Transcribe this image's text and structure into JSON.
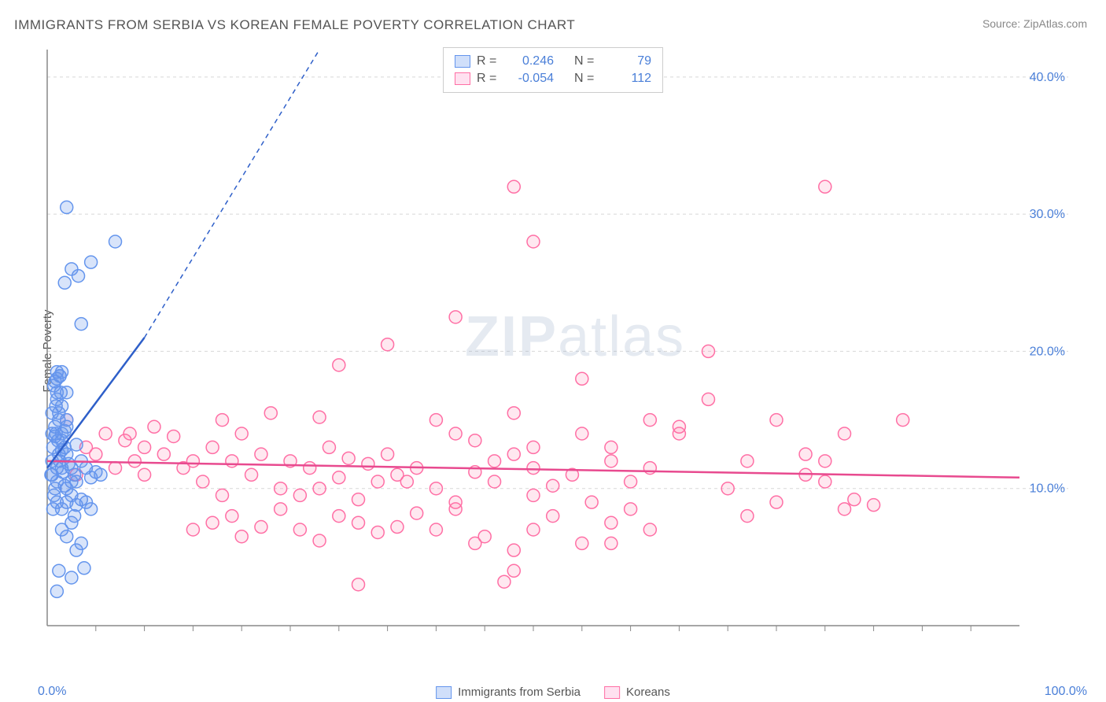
{
  "title": "IMMIGRANTS FROM SERBIA VS KOREAN FEMALE POVERTY CORRELATION CHART",
  "source": "Source: ZipAtlas.com",
  "ylabel": "Female Poverty",
  "watermark_zip": "ZIP",
  "watermark_atlas": "atlas",
  "chart": {
    "type": "scatter",
    "background_color": "#ffffff",
    "grid_color": "#d8d8d8",
    "axis_color": "#888888",
    "xlim": [
      0,
      100
    ],
    "ylim": [
      0,
      42
    ],
    "y_gridlines": [
      10,
      20,
      30,
      40
    ],
    "y_tick_labels": [
      "10.0%",
      "20.0%",
      "30.0%",
      "40.0%"
    ],
    "x_axis_min_label": "0.0%",
    "x_axis_max_label": "100.0%",
    "x_tick_positions": [
      5,
      10,
      15,
      20,
      25,
      30,
      35,
      40,
      45,
      50,
      55,
      60,
      65,
      70,
      75,
      80,
      85,
      90,
      95
    ],
    "marker_radius": 8,
    "marker_stroke_width": 1.5,
    "series": {
      "serbia": {
        "label": "Immigrants from Serbia",
        "color_fill": "rgba(100,149,237,0.25)",
        "color_stroke": "#6495ed",
        "R": "0.246",
        "N": "79",
        "trend": {
          "x1": 0,
          "y1": 11.5,
          "x2": 10,
          "y2": 21,
          "dash_x2": 28,
          "dash_y2": 42,
          "stroke": "#2e5fc9",
          "stroke_width": 2.5,
          "dash": "6,5"
        },
        "points": [
          [
            0.5,
            11
          ],
          [
            0.5,
            12
          ],
          [
            0.8,
            10
          ],
          [
            0.6,
            13
          ],
          [
            0.9,
            14
          ],
          [
            1.0,
            11.5
          ],
          [
            1.2,
            12.5
          ],
          [
            0.7,
            9.5
          ],
          [
            1.1,
            13.5
          ],
          [
            0.4,
            11
          ],
          [
            1.3,
            12
          ],
          [
            0.8,
            14.5
          ],
          [
            1.0,
            10.5
          ],
          [
            1.5,
            12.8
          ],
          [
            0.6,
            8.5
          ],
          [
            1.2,
            15
          ],
          [
            0.9,
            16
          ],
          [
            1.4,
            17
          ],
          [
            0.7,
            17.5
          ],
          [
            1.0,
            18
          ],
          [
            1.3,
            18.2
          ],
          [
            0.5,
            15.5
          ],
          [
            1.6,
            11.2
          ],
          [
            1.8,
            13
          ],
          [
            2.0,
            12.5
          ],
          [
            2.2,
            11.8
          ],
          [
            2.5,
            10.5
          ],
          [
            2.8,
            11
          ],
          [
            3.0,
            13.2
          ],
          [
            3.5,
            12
          ],
          [
            4.0,
            11.5
          ],
          [
            4.5,
            10.8
          ],
          [
            5.0,
            11.2
          ],
          [
            5.5,
            11
          ],
          [
            2.5,
            26
          ],
          [
            3.2,
            25.5
          ],
          [
            4.5,
            26.5
          ],
          [
            1.8,
            25
          ],
          [
            2.0,
            30.5
          ],
          [
            3.5,
            22
          ],
          [
            7.0,
            28
          ],
          [
            1.5,
            7
          ],
          [
            2.0,
            6.5
          ],
          [
            2.5,
            7.5
          ],
          [
            3.0,
            5.5
          ],
          [
            3.5,
            6
          ],
          [
            2.8,
            8
          ],
          [
            1.2,
            4
          ],
          [
            2.5,
            3.5
          ],
          [
            3.8,
            4.2
          ],
          [
            1.0,
            2.5
          ],
          [
            2.0,
            9
          ],
          [
            2.5,
            9.5
          ],
          [
            3.0,
            8.8
          ],
          [
            1.8,
            10.2
          ],
          [
            3.5,
            9.2
          ],
          [
            4.0,
            9
          ],
          [
            4.5,
            8.5
          ],
          [
            1.5,
            14
          ],
          [
            2.0,
            14.5
          ],
          [
            1.0,
            16.5
          ],
          [
            1.5,
            16
          ],
          [
            2.0,
            17
          ],
          [
            0.5,
            14
          ],
          [
            1.0,
            18.5
          ],
          [
            1.3,
            18.2
          ],
          [
            0.8,
            17.8
          ],
          [
            1.5,
            18.5
          ],
          [
            1.0,
            17
          ],
          [
            1.2,
            15.5
          ],
          [
            0.8,
            13.8
          ],
          [
            1.5,
            13.5
          ],
          [
            1.8,
            14.2
          ],
          [
            2.0,
            15
          ],
          [
            1.0,
            9
          ],
          [
            1.5,
            8.5
          ],
          [
            2.0,
            10
          ],
          [
            2.5,
            11.5
          ],
          [
            3.0,
            10.5
          ],
          [
            1.5,
            11.5
          ]
        ]
      },
      "koreans": {
        "label": "Koreans",
        "color_fill": "rgba(255,130,170,0.18)",
        "color_stroke": "#ff6fa5",
        "R": "-0.054",
        "N": "112",
        "trend": {
          "x1": 0,
          "y1": 12,
          "x2": 100,
          "y2": 10.8,
          "stroke": "#e84a8f",
          "stroke_width": 2.5
        },
        "points": [
          [
            2,
            15
          ],
          [
            3,
            11
          ],
          [
            4,
            13
          ],
          [
            5,
            12.5
          ],
          [
            6,
            14
          ],
          [
            7,
            11.5
          ],
          [
            8,
            13.5
          ],
          [
            8.5,
            14
          ],
          [
            9,
            12
          ],
          [
            10,
            13
          ],
          [
            10,
            11
          ],
          [
            11,
            14.5
          ],
          [
            12,
            12.5
          ],
          [
            13,
            13.8
          ],
          [
            14,
            11.5
          ],
          [
            15,
            12
          ],
          [
            16,
            10.5
          ],
          [
            17,
            13
          ],
          [
            18,
            9.5
          ],
          [
            18,
            15
          ],
          [
            19,
            12
          ],
          [
            20,
            14
          ],
          [
            21,
            11
          ],
          [
            22,
            12.5
          ],
          [
            23,
            15.5
          ],
          [
            24,
            10
          ],
          [
            15,
            7
          ],
          [
            17,
            7.5
          ],
          [
            19,
            8
          ],
          [
            20,
            6.5
          ],
          [
            22,
            7.2
          ],
          [
            24,
            8.5
          ],
          [
            26,
            7
          ],
          [
            28,
            6.2
          ],
          [
            30,
            8
          ],
          [
            32,
            7.5
          ],
          [
            34,
            6.8
          ],
          [
            36,
            7.2
          ],
          [
            38,
            8.2
          ],
          [
            40,
            7
          ],
          [
            42,
            8.5
          ],
          [
            44,
            6
          ],
          [
            25,
            12
          ],
          [
            27,
            11.5
          ],
          [
            29,
            13
          ],
          [
            31,
            12.2
          ],
          [
            33,
            11.8
          ],
          [
            35,
            12.5
          ],
          [
            37,
            10.5
          ],
          [
            26,
            9.5
          ],
          [
            28,
            10
          ],
          [
            30,
            10.8
          ],
          [
            32,
            9.2
          ],
          [
            34,
            10.5
          ],
          [
            36,
            11
          ],
          [
            40,
            15
          ],
          [
            42,
            14
          ],
          [
            44,
            13.5
          ],
          [
            46,
            12
          ],
          [
            48,
            15.5
          ],
          [
            50,
            11.5
          ],
          [
            38,
            11.5
          ],
          [
            40,
            10
          ],
          [
            42,
            9
          ],
          [
            44,
            11.2
          ],
          [
            46,
            10.5
          ],
          [
            48,
            12.5
          ],
          [
            50,
            9.5
          ],
          [
            52,
            10.2
          ],
          [
            54,
            11
          ],
          [
            56,
            9
          ],
          [
            58,
            12
          ],
          [
            60,
            10.5
          ],
          [
            45,
            6.5
          ],
          [
            48,
            5.5
          ],
          [
            50,
            7
          ],
          [
            52,
            8
          ],
          [
            55,
            6
          ],
          [
            58,
            7.5
          ],
          [
            60,
            8.5
          ],
          [
            62,
            7
          ],
          [
            48,
            32
          ],
          [
            50,
            28
          ],
          [
            42,
            22.5
          ],
          [
            35,
            20.5
          ],
          [
            30,
            19
          ],
          [
            28,
            15.2
          ],
          [
            55,
            18
          ],
          [
            58,
            13
          ],
          [
            62,
            11.5
          ],
          [
            65,
            14
          ],
          [
            68,
            16.5
          ],
          [
            70,
            10
          ],
          [
            68,
            20
          ],
          [
            72,
            12
          ],
          [
            75,
            15
          ],
          [
            78,
            11
          ],
          [
            80,
            12
          ],
          [
            82,
            8.5
          ],
          [
            80,
            32
          ],
          [
            65,
            14.5
          ],
          [
            55,
            14
          ],
          [
            50,
            13
          ],
          [
            58,
            6
          ],
          [
            62,
            15
          ],
          [
            72,
            8
          ],
          [
            75,
            9
          ],
          [
            78,
            12.5
          ],
          [
            80,
            10.5
          ],
          [
            82,
            14
          ],
          [
            48,
            4
          ],
          [
            32,
            3
          ],
          [
            47,
            3.2
          ],
          [
            88,
            15
          ],
          [
            85,
            8.8
          ],
          [
            83,
            9.2
          ]
        ]
      }
    }
  },
  "legend_labels": {
    "R": "R =",
    "N": "N ="
  }
}
